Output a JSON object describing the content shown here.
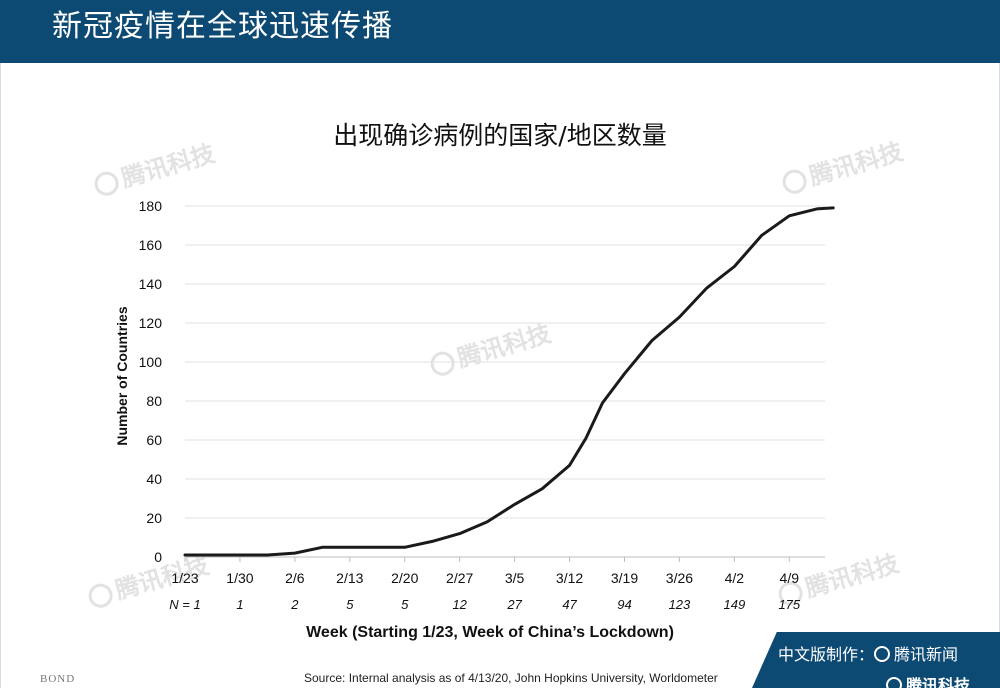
{
  "header": {
    "title": "新冠疫情在全球迅速传播"
  },
  "watermarks": [
    "腾讯科技",
    "腾讯科技",
    "腾讯科技",
    "腾讯科技",
    "腾讯科技"
  ],
  "chart_data": {
    "type": "line",
    "title": "出现确诊病例的国家/地区数量",
    "ylabel": "Number of Countries",
    "xlabel": "Week (Starting 1/23, Week of China’s Lockdown)",
    "ylim": [
      0,
      180
    ],
    "yticks": [
      0,
      20,
      40,
      60,
      80,
      100,
      120,
      140,
      160,
      180
    ],
    "grid": true,
    "categories": [
      "1/23",
      "1/30",
      "2/6",
      "2/13",
      "2/20",
      "2/27",
      "3/5",
      "3/12",
      "3/19",
      "3/26",
      "4/2",
      "4/9"
    ],
    "n_labels": [
      "N = 1",
      "1",
      "2",
      "5",
      "5",
      "12",
      "27",
      "47",
      "94",
      "123",
      "149",
      "175"
    ],
    "series": [
      {
        "x": [
          0,
          0.5,
          1,
          1.5,
          2,
          2.5,
          3,
          3.5,
          4,
          4.5,
          5,
          5.5,
          6,
          6.5,
          7,
          7.3,
          7.6,
          8,
          8.5,
          9,
          9.5,
          10,
          10.5,
          11,
          11.5,
          11.8
        ],
        "values": [
          1,
          1,
          1,
          1,
          2,
          5,
          5,
          5,
          5,
          8,
          12,
          18,
          27,
          35,
          47,
          61,
          79,
          94,
          111,
          123,
          138,
          149,
          165,
          175,
          178.5,
          179
        ]
      }
    ]
  },
  "source": "Source: Internal analysis as of 4/13/20, John Hopkins University, Worldometer",
  "bond": "BOND",
  "credit": {
    "line1_prefix": "中文版制作：",
    "line1_brand": "腾讯新闻",
    "line2_brand": "腾讯科技"
  }
}
